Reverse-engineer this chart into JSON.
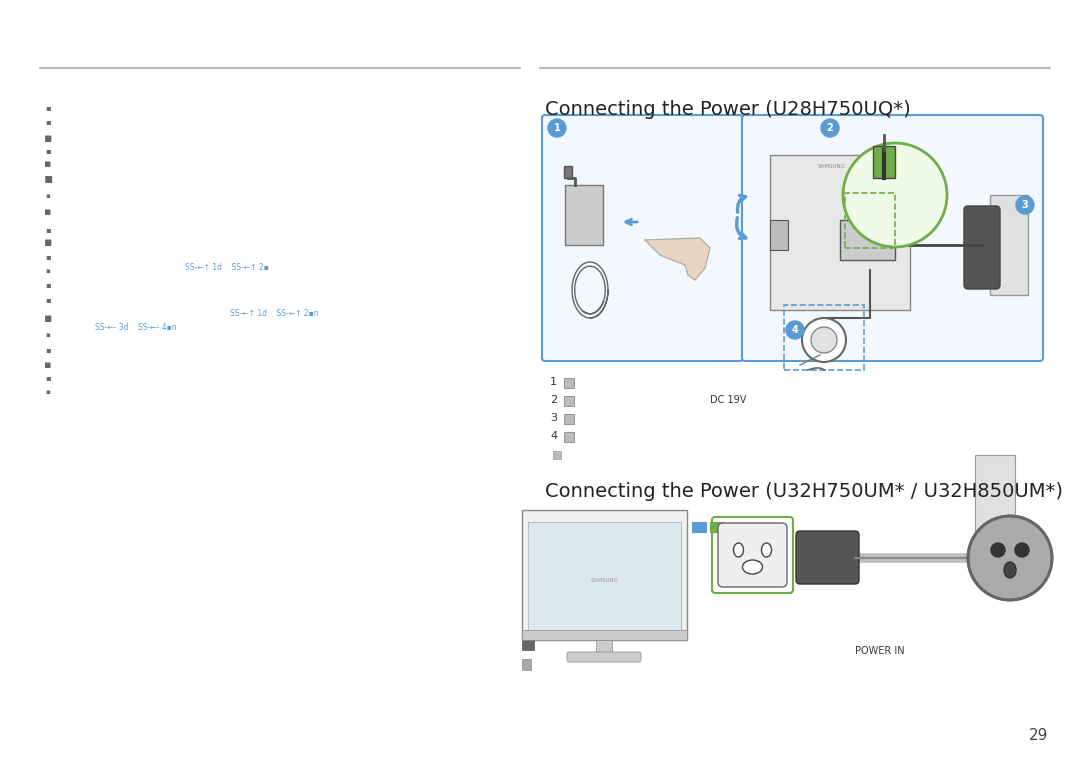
{
  "bg_color": "#ffffff",
  "title1": "Connecting the Power (U28H750UQ*)",
  "title2": "Connecting the Power (U32H750UM* / U32H850UM*)",
  "page_number": "29",
  "line_color": "#aaaaaa",
  "text_color": "#222222",
  "blue_color": "#5b9bd5",
  "green_color": "#70ad47",
  "dark_color": "#333333",
  "gray_color": "#888888",
  "light_gray": "#dddddd",
  "body_text_color": "#555555",
  "dc_label": "DC 19V",
  "power_in_label": "POWER IN",
  "title1_fontsize": 14,
  "title2_fontsize": 14,
  "page_num_fontsize": 11,
  "label_fontsize": 7,
  "small_fontsize": 5,
  "sidebar_text1": "SS→4→ 1d    SS→4→ 2▪",
  "sidebar_text2": "SS→4→ 1d    SS→4→ 2▪n",
  "sidebar_text3": "SS→4- 3d    SS→4- 4▪n"
}
